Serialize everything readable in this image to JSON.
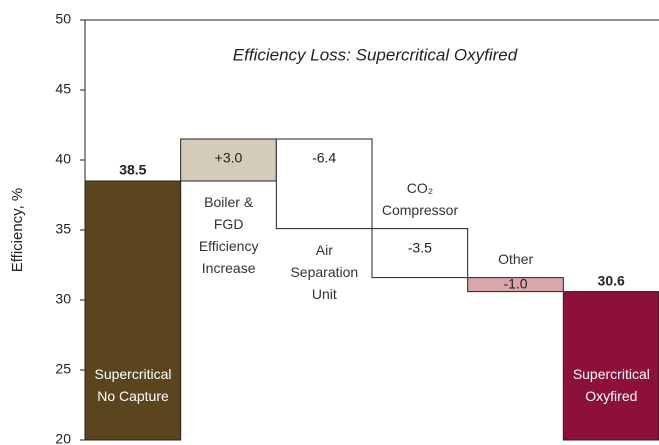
{
  "chart_data": {
    "type": "waterfall",
    "title": "Efficiency Loss: Supercritical Oxyfired",
    "ylabel": "Efficiency, %",
    "categories": [
      "Supercritical\nNo Capture",
      "Boiler &\nFGD\nEfficiency\nIncrease",
      "Air\nSeparation\nUnit",
      "CO₂\nCompressor",
      "Other",
      "Supercritical\nOxyfired"
    ],
    "values": [
      38.5,
      3.0,
      -6.4,
      -3.5,
      -1.0,
      30.6
    ],
    "value_labels": [
      "38.5",
      "+3.0",
      "-6.4",
      "-3.5",
      "-1.0",
      "30.6"
    ],
    "totals": [
      true,
      false,
      false,
      false,
      false,
      true
    ],
    "colors": [
      "#5b451f",
      "#d5cbbb",
      "#ffffff",
      "#ffffff",
      "#d9a7ab",
      "#8c0f3c"
    ],
    "ylim": [
      20,
      50
    ],
    "yticks": [
      20,
      25,
      30,
      35,
      40,
      45,
      50
    ]
  }
}
